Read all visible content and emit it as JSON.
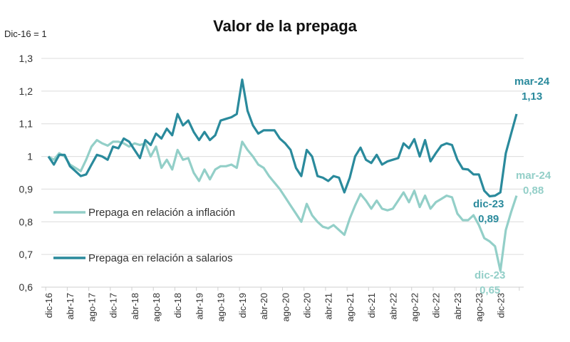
{
  "chart_data": {
    "type": "line",
    "title": "Valor de la prepaga",
    "ylabel": "Dic-16 = 1",
    "xlabel": "",
    "ylim": [
      0.6,
      1.3
    ],
    "yticks": [
      "0,6",
      "0,7",
      "0,8",
      "0,9",
      "1",
      "1,1",
      "1,2",
      "1,3"
    ],
    "ytick_values": [
      0.6,
      0.7,
      0.8,
      0.9,
      1.0,
      1.1,
      1.2,
      1.3
    ],
    "x_start": "dic-16",
    "x_end": "mar-24",
    "x_frequency": "monthly",
    "xticks": [
      "dic-16",
      "abr-17",
      "ago-17",
      "dic-17",
      "abr-18",
      "ago-18",
      "dic-18",
      "abr-19",
      "ago-19",
      "dic-19",
      "abr-20",
      "ago-20",
      "dic-20",
      "abr-21",
      "ago-21",
      "dic-21",
      "abr-22",
      "ago-22",
      "dic-22",
      "abr-23",
      "ago-23",
      "dic-23"
    ],
    "grid": "horizontal",
    "legend_placement": "left, inside plot",
    "series": [
      {
        "name": "Prepaga en relación a inflación",
        "color": "#93cfc8",
        "values": [
          1.0,
          0.99,
          1.01,
          1.0,
          0.975,
          0.965,
          0.955,
          0.99,
          1.03,
          1.05,
          1.04,
          1.033,
          1.045,
          1.045,
          1.04,
          1.03,
          1.04,
          1.035,
          1.04,
          1.0,
          1.03,
          0.965,
          0.99,
          0.96,
          1.02,
          0.99,
          0.995,
          0.95,
          0.925,
          0.96,
          0.93,
          0.96,
          0.97,
          0.97,
          0.975,
          0.965,
          1.045,
          1.02,
          1.0,
          0.975,
          0.965,
          0.94,
          0.92,
          0.9,
          0.875,
          0.85,
          0.825,
          0.8,
          0.855,
          0.82,
          0.8,
          0.785,
          0.78,
          0.79,
          0.775,
          0.76,
          0.81,
          0.85,
          0.885,
          0.865,
          0.84,
          0.865,
          0.84,
          0.835,
          0.84,
          0.865,
          0.89,
          0.86,
          0.895,
          0.845,
          0.88,
          0.84,
          0.86,
          0.87,
          0.88,
          0.875,
          0.825,
          0.805,
          0.805,
          0.82,
          0.79,
          0.75,
          0.74,
          0.725,
          0.65,
          0.775,
          0.83,
          0.88
        ]
      },
      {
        "name": "Prepaga en relación a salarios",
        "color": "#2a8a9c",
        "values": [
          1.0,
          0.975,
          1.005,
          1.005,
          0.97,
          0.955,
          0.94,
          0.945,
          0.975,
          1.005,
          1.0,
          0.99,
          1.03,
          1.025,
          1.055,
          1.045,
          1.02,
          0.995,
          1.05,
          1.035,
          1.07,
          1.055,
          1.085,
          1.065,
          1.13,
          1.095,
          1.11,
          1.075,
          1.05,
          1.075,
          1.05,
          1.065,
          1.11,
          1.115,
          1.12,
          1.13,
          1.235,
          1.14,
          1.095,
          1.07,
          1.08,
          1.08,
          1.08,
          1.055,
          1.04,
          1.02,
          0.965,
          0.94,
          1.02,
          1.0,
          0.94,
          0.935,
          0.925,
          0.94,
          0.935,
          0.89,
          0.935,
          1.0,
          1.027,
          0.99,
          0.98,
          1.005,
          0.975,
          0.985,
          0.99,
          0.995,
          1.04,
          1.025,
          1.053,
          1.0,
          1.05,
          0.985,
          1.01,
          1.033,
          1.04,
          1.035,
          0.99,
          0.962,
          0.96,
          0.945,
          0.945,
          0.895,
          0.878,
          0.88,
          0.89,
          1.01,
          1.07,
          1.13
        ]
      }
    ],
    "annotations": {
      "salarios_mar24": {
        "date": "mar-24",
        "value": "1,13"
      },
      "salarios_dic23": {
        "date": "dic-23",
        "value": "0,89"
      },
      "inflacion_mar24": {
        "date": "mar-24",
        "value": "0,88"
      },
      "inflacion_dic23": {
        "date": "dic-23",
        "value": "0,65"
      }
    }
  }
}
